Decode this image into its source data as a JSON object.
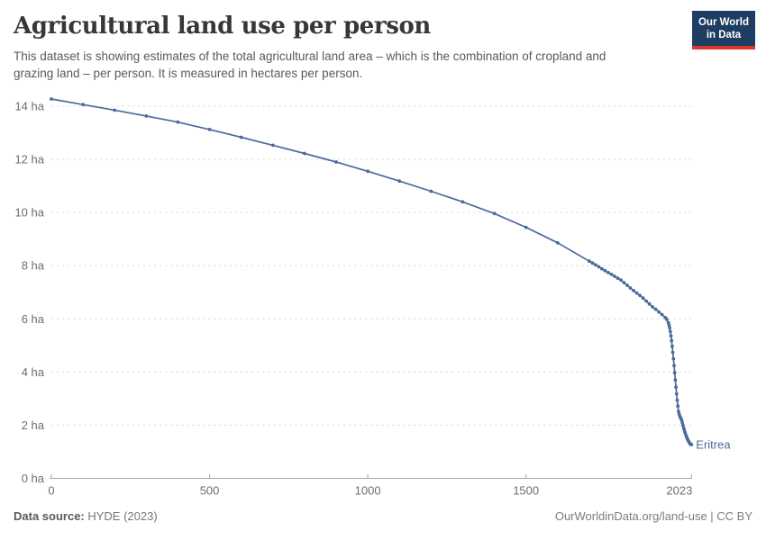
{
  "header": {
    "title": "Agricultural land use per person",
    "subtitle_line1": "This dataset is showing estimates of the total agricultural land area – which is the combination of cropland and",
    "subtitle_line2": "grazing land – per person. It is measured in hectares per person.",
    "logo": {
      "line1": "Our World",
      "line2": "in Data"
    }
  },
  "footer": {
    "source_label": "Data source:",
    "source_value": " HYDE (2023)",
    "credit": "OurWorldinData.org/land-use | CC BY"
  },
  "chart_data": {
    "type": "line",
    "title": "Agricultural land use per person",
    "unit": "hectares per person",
    "entity_label": "Eritrea",
    "line_color": "#4c6a9c",
    "grid": true,
    "legend_position": "end-of-line",
    "xlim": [
      0,
      2023
    ],
    "ylim": [
      0,
      14
    ],
    "x_ticks": [
      {
        "value": 0,
        "label": "0"
      },
      {
        "value": 500,
        "label": "500"
      },
      {
        "value": 1000,
        "label": "1000"
      },
      {
        "value": 1500,
        "label": "1500"
      },
      {
        "value": 2023,
        "label": "2023"
      }
    ],
    "y_ticks": [
      {
        "value": 0,
        "label": "0 ha"
      },
      {
        "value": 2,
        "label": "2 ha"
      },
      {
        "value": 4,
        "label": "4 ha"
      },
      {
        "value": 6,
        "label": "6 ha"
      },
      {
        "value": 8,
        "label": "8 ha"
      },
      {
        "value": 10,
        "label": "10 ha"
      },
      {
        "value": 12,
        "label": "12 ha"
      },
      {
        "value": 14,
        "label": "14 ha"
      }
    ],
    "points": [
      [
        0,
        14.27
      ],
      [
        100,
        14.06
      ],
      [
        200,
        13.85
      ],
      [
        300,
        13.63
      ],
      [
        400,
        13.4
      ],
      [
        500,
        13.12
      ],
      [
        600,
        12.83
      ],
      [
        700,
        12.53
      ],
      [
        800,
        12.22
      ],
      [
        900,
        11.9
      ],
      [
        1000,
        11.55
      ],
      [
        1100,
        11.18
      ],
      [
        1200,
        10.8
      ],
      [
        1300,
        10.4
      ],
      [
        1400,
        9.96
      ],
      [
        1500,
        9.44
      ],
      [
        1600,
        8.86
      ],
      [
        1700,
        8.17
      ],
      [
        1710,
        8.1
      ],
      [
        1720,
        8.03
      ],
      [
        1730,
        7.96
      ],
      [
        1740,
        7.88
      ],
      [
        1750,
        7.81
      ],
      [
        1760,
        7.74
      ],
      [
        1770,
        7.67
      ],
      [
        1780,
        7.6
      ],
      [
        1790,
        7.53
      ],
      [
        1800,
        7.46
      ],
      [
        1810,
        7.36
      ],
      [
        1820,
        7.26
      ],
      [
        1830,
        7.16
      ],
      [
        1840,
        7.06
      ],
      [
        1850,
        6.97
      ],
      [
        1860,
        6.88
      ],
      [
        1870,
        6.78
      ],
      [
        1880,
        6.67
      ],
      [
        1890,
        6.56
      ],
      [
        1900,
        6.45
      ],
      [
        1910,
        6.36
      ],
      [
        1920,
        6.26
      ],
      [
        1930,
        6.16
      ],
      [
        1940,
        6.05
      ],
      [
        1945,
        5.98
      ],
      [
        1950,
        5.85
      ],
      [
        1952,
        5.76
      ],
      [
        1954,
        5.66
      ],
      [
        1956,
        5.52
      ],
      [
        1958,
        5.36
      ],
      [
        1960,
        5.18
      ],
      [
        1962,
        4.97
      ],
      [
        1964,
        4.74
      ],
      [
        1966,
        4.5
      ],
      [
        1968,
        4.24
      ],
      [
        1970,
        3.97
      ],
      [
        1972,
        3.7
      ],
      [
        1974,
        3.43
      ],
      [
        1976,
        3.18
      ],
      [
        1978,
        2.94
      ],
      [
        1980,
        2.72
      ],
      [
        1982,
        2.52
      ],
      [
        1984,
        2.42
      ],
      [
        1986,
        2.35
      ],
      [
        1988,
        2.29
      ],
      [
        1990,
        2.24
      ],
      [
        1992,
        2.19
      ],
      [
        1994,
        2.1
      ],
      [
        1996,
        2.0
      ],
      [
        1998,
        1.91
      ],
      [
        2000,
        1.83
      ],
      [
        2002,
        1.75
      ],
      [
        2004,
        1.68
      ],
      [
        2006,
        1.61
      ],
      [
        2008,
        1.55
      ],
      [
        2010,
        1.49
      ],
      [
        2012,
        1.44
      ],
      [
        2014,
        1.39
      ],
      [
        2016,
        1.35
      ],
      [
        2018,
        1.31
      ],
      [
        2020,
        1.29
      ],
      [
        2022,
        1.27
      ],
      [
        2023,
        1.27
      ]
    ],
    "colors": {
      "gridline": "#dcdcdc",
      "axis": "#a5a5a5",
      "tick_label": "#6e6e6e"
    }
  }
}
